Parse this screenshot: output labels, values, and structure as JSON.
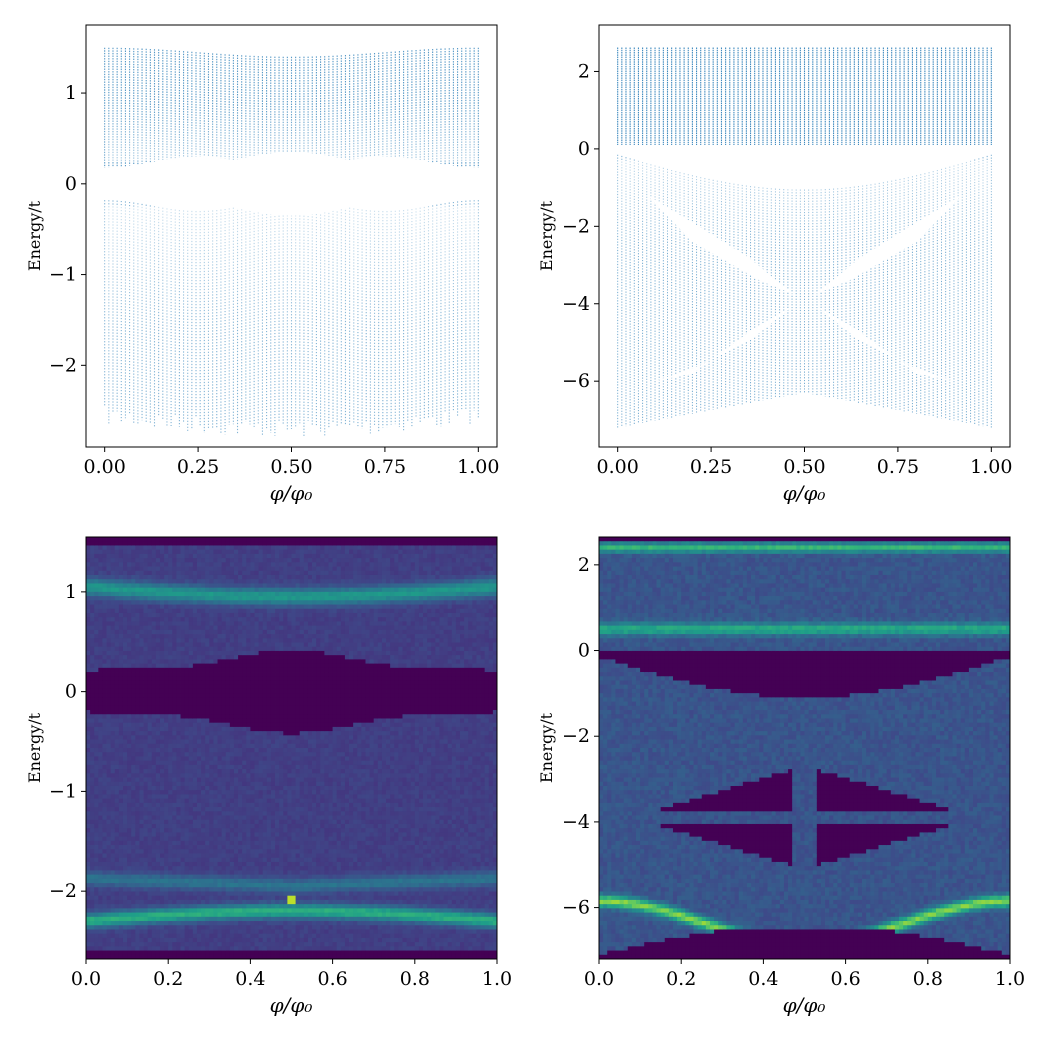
{
  "chart_data": [
    {
      "type": "scatter",
      "panel": "top-left",
      "xlabel": "φ/φ₀",
      "ylabel": "Energy/t",
      "xlim": [
        -0.05,
        1.05
      ],
      "ylim": [
        -2.9,
        1.75
      ],
      "xticks": [
        0.0,
        0.25,
        0.5,
        0.75,
        1.0
      ],
      "xtick_labels": [
        "0.00",
        "0.25",
        "0.50",
        "0.75",
        "1.00"
      ],
      "yticks": [
        1,
        0,
        -1,
        -2
      ],
      "ytick_labels": [
        "1",
        "0",
        "−1",
        "−2"
      ],
      "color": "#1f77b4",
      "description_of_spectrum": {
        "phi_range": [
          0.0,
          1.0
        ],
        "energy_min": -2.65,
        "energy_max": 1.52,
        "gap_around_zero": [
          -0.2,
          0.2
        ]
      }
    },
    {
      "type": "scatter",
      "panel": "top-right",
      "xlabel": "φ/φ₀",
      "ylabel": "Energy/t",
      "xlim": [
        -0.05,
        1.05
      ],
      "ylim": [
        -7.7,
        3.2
      ],
      "xticks": [
        0.0,
        0.25,
        0.5,
        0.75,
        1.0
      ],
      "xtick_labels": [
        "0.00",
        "0.25",
        "0.50",
        "0.75",
        "1.00"
      ],
      "yticks": [
        2,
        0,
        -2,
        -4,
        -6
      ],
      "ytick_labels": [
        "2",
        "0",
        "−2",
        "−4",
        "−6"
      ],
      "color": "#1f77b4",
      "description_of_spectrum": {
        "phi_range": [
          0.0,
          1.0
        ],
        "energy_min": -7.2,
        "energy_max": 2.65,
        "gap_crossing_point": [
          0.5,
          -3.9
        ]
      }
    },
    {
      "type": "heatmap",
      "panel": "bottom-left",
      "xlabel": "φ/φ₀",
      "ylabel": "Energy/t",
      "xlim": [
        0.0,
        1.0
      ],
      "ylim": [
        -2.68,
        1.55
      ],
      "xticks": [
        0.0,
        0.2,
        0.4,
        0.6,
        0.8,
        1.0
      ],
      "xtick_labels": [
        "0.0",
        "0.2",
        "0.4",
        "0.6",
        "0.8",
        "1.0"
      ],
      "yticks": [
        1,
        0,
        -1,
        -2
      ],
      "ytick_labels": [
        "1",
        "0",
        "−1",
        "−2"
      ],
      "colormap": "viridis"
    },
    {
      "type": "heatmap",
      "panel": "bottom-right",
      "xlabel": "φ/φ₀",
      "ylabel": "Energy/t",
      "xlim": [
        0.0,
        1.0
      ],
      "ylim": [
        -7.2,
        2.65
      ],
      "xticks": [
        0.0,
        0.2,
        0.4,
        0.6,
        0.8,
        1.0
      ],
      "xtick_labels": [
        "0.0",
        "0.2",
        "0.4",
        "0.6",
        "0.8",
        "1.0"
      ],
      "yticks": [
        2,
        0,
        -2,
        -4,
        -6
      ],
      "ytick_labels": [
        "2",
        "0",
        "−2",
        "−4",
        "−6"
      ],
      "colormap": "viridis"
    }
  ]
}
